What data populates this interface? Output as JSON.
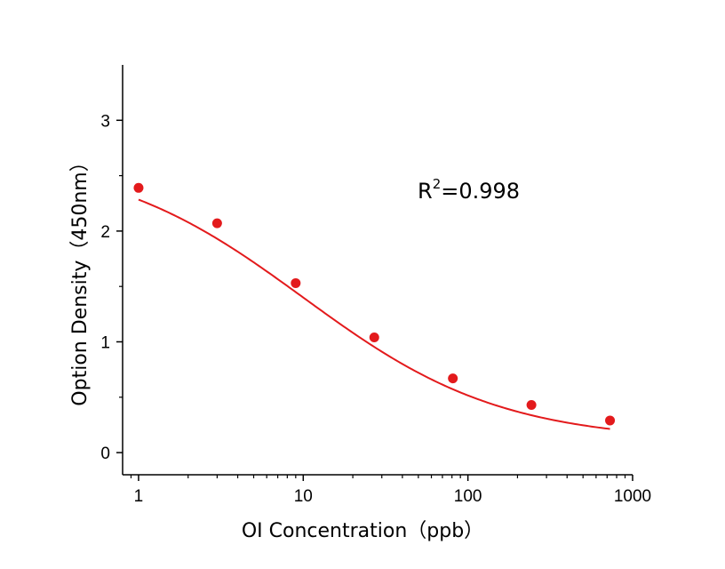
{
  "chart_data": {
    "type": "scatter",
    "xlabel": "OI Concentration（ppb）",
    "ylabel": "Option Density（450nm）",
    "x_scale": "log",
    "xlim": [
      0.8,
      1000
    ],
    "ylim": [
      -0.2,
      3.5
    ],
    "x_ticks": [
      1,
      10,
      100,
      1000
    ],
    "x_tick_labels": [
      "1",
      "10",
      "100",
      "1000"
    ],
    "y_ticks": [
      0,
      1,
      2,
      3
    ],
    "y_tick_labels": [
      "0",
      "1",
      "2",
      "3"
    ],
    "grid": false,
    "marker_color": "#e31a1c",
    "curve_color": "#e31a1c",
    "series": [
      {
        "x": [
          1,
          3,
          9,
          27,
          81,
          243,
          729
        ],
        "y": [
          2.39,
          2.07,
          1.53,
          1.04,
          0.67,
          0.43,
          0.29
        ]
      }
    ],
    "fit_curve": {
      "type": "4PL",
      "top": 2.7,
      "bottom": 0.1,
      "ec50": 10,
      "hill": 0.72
    },
    "annotation": {
      "base": "R",
      "superscript": "2",
      "text": "=0.998"
    }
  }
}
